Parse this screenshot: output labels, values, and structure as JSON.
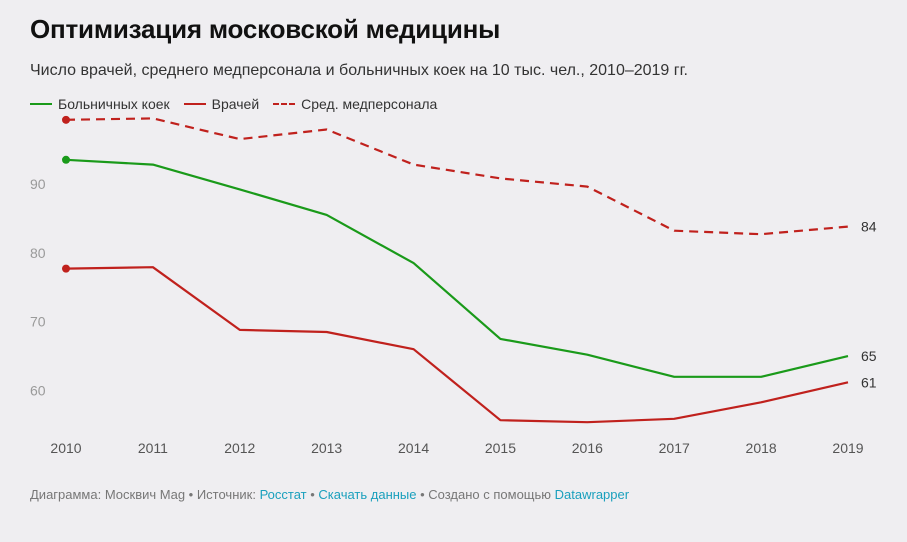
{
  "title": "Оптимизация московской медицины",
  "subtitle": "Число врачей, среднего медперсонала и больничных коек на 10 тыс. чел., 2010–2019 гг.",
  "chart_data": {
    "type": "line",
    "x": [
      "2010",
      "2011",
      "2012",
      "2013",
      "2014",
      "2015",
      "2016",
      "2017",
      "2018",
      "2019"
    ],
    "ylim": [
      55,
      100
    ],
    "yticks": [
      60,
      70,
      80,
      90
    ],
    "grid": false,
    "series": [
      {
        "name": "Больничных коек",
        "color": "#1a9a1a",
        "dash": false,
        "values": [
          93.5,
          92.8,
          89.2,
          85.5,
          78.5,
          67.5,
          65.2,
          62.0,
          62.0,
          65.0
        ],
        "end_label": "65"
      },
      {
        "name": "Врачей",
        "color": "#c0211d",
        "dash": false,
        "values": [
          77.7,
          77.9,
          68.8,
          68.5,
          66.0,
          55.7,
          55.4,
          55.9,
          58.3,
          61.2
        ],
        "end_label": "61"
      },
      {
        "name": "Сред. медперсонала",
        "color": "#c0211d",
        "dash": true,
        "values": [
          99.3,
          99.5,
          96.5,
          97.9,
          92.8,
          90.8,
          89.6,
          83.2,
          82.7,
          83.8
        ],
        "end_label": "84"
      }
    ]
  },
  "footer": {
    "prefix": "Диаграмма: Москвич Mag • Источник: ",
    "source": "Росстат",
    "sep1": " • ",
    "download": "Скачать данные",
    "middle": " • Создано с помощью ",
    "tool": "Datawrapper"
  }
}
